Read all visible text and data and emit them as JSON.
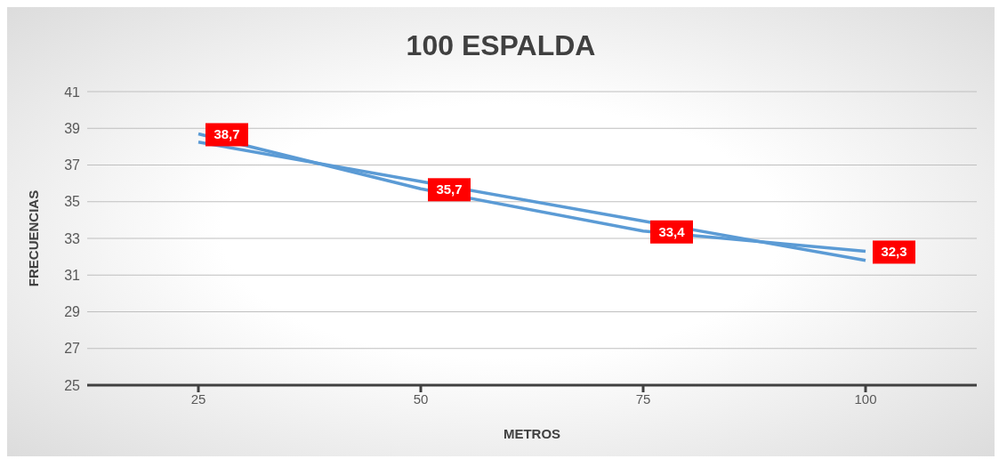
{
  "chart_data": {
    "type": "line",
    "title": "100 ESPALDA",
    "xlabel": "METROS",
    "ylabel": "FRECUENCIAS",
    "categories": [
      "25",
      "50",
      "75",
      "100"
    ],
    "series": [
      {
        "color": "#5b9bd5",
        "values": [
          38.7,
          35.7,
          33.4,
          32.3
        ],
        "value_labels": [
          "38,7",
          "35,7",
          "33,4",
          "32,3"
        ]
      },
      {
        "type": "line",
        "color": "#5b9bd5",
        "x": [
          "25",
          "50",
          "75",
          "100"
        ],
        "values": [
          38.25,
          36.1,
          33.95,
          31.8
        ]
      }
    ],
    "ylim": [
      25,
      41
    ],
    "yticks": [
      25,
      27,
      29,
      31,
      33,
      35,
      37,
      39,
      41
    ],
    "grid": "y",
    "marker": "none"
  }
}
